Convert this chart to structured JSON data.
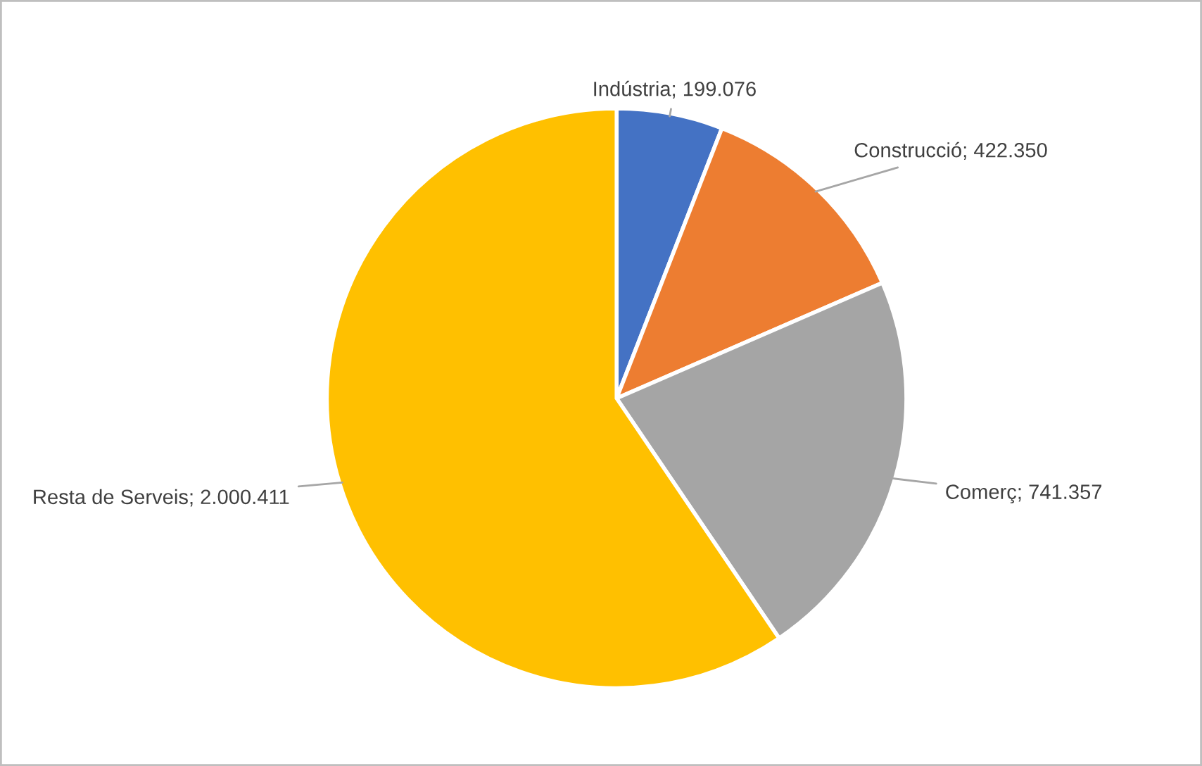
{
  "chart_data": {
    "type": "pie",
    "categories": [
      "Indústria",
      "Construcció",
      "Comerç",
      "Resta de Serveis"
    ],
    "values": [
      199076,
      422350,
      741357,
      2000411
    ],
    "value_labels": [
      "199.076",
      "422.350",
      "741.357",
      "2.000.411"
    ],
    "colors": [
      "#4472c4",
      "#ed7d31",
      "#a5a5a5",
      "#ffc000"
    ]
  }
}
